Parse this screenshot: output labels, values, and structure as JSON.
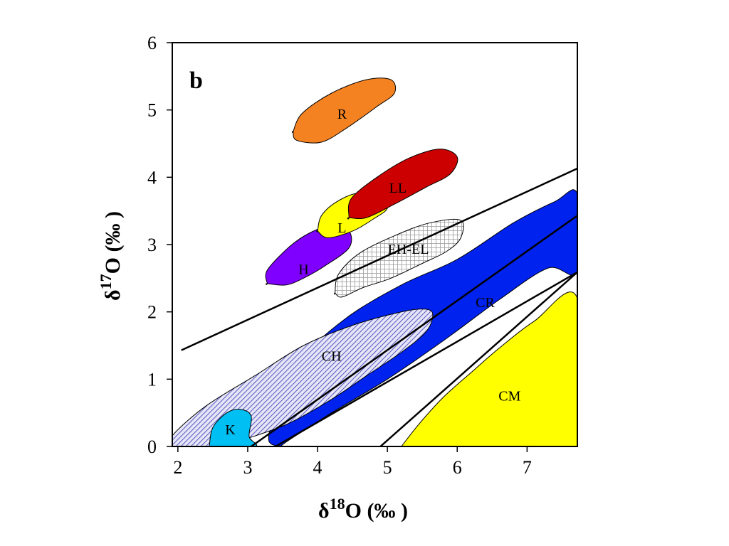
{
  "chart_data": {
    "type": "area",
    "panel_label": "b",
    "xlabel": {
      "prefix": "δ",
      "superscript": "18",
      "suffix": "O (‰ )"
    },
    "ylabel": {
      "prefix": "δ",
      "superscript": "17",
      "suffix": "O (‰ )"
    },
    "xlim": [
      1.92,
      7.72
    ],
    "ylim": [
      0,
      6
    ],
    "x_ticks": [
      2,
      3,
      4,
      5,
      6,
      7
    ],
    "y_ticks": [
      0,
      1,
      2,
      3,
      4,
      5,
      6
    ],
    "grid": false,
    "colors": {
      "R": "#f58220",
      "LL": "#cc0000",
      "L": "#ffff00",
      "H": "#8000ff",
      "EH-EL": "#ffffff",
      "CR": "#0022ee",
      "CH": "#c8c8ee",
      "K": "#00bff3",
      "CM": "#ffff00"
    },
    "lines": [
      {
        "x": [
          2.05,
          7.72
        ],
        "y": [
          1.43,
          4.13
        ]
      },
      {
        "x": [
          3.05,
          7.72
        ],
        "y": [
          0.0,
          3.43
        ]
      },
      {
        "x": [
          3.4,
          7.72
        ],
        "y": [
          0.0,
          2.59
        ]
      },
      {
        "x": [
          4.9,
          7.72
        ],
        "y": [
          0.0,
          2.59
        ]
      }
    ],
    "regions": [
      {
        "label": "CM",
        "label_at": [
          6.75,
          0.73
        ],
        "outline": [
          [
            5.2,
            0
          ],
          [
            5.45,
            0.33
          ],
          [
            5.8,
            0.73
          ],
          [
            6.2,
            1.1
          ],
          [
            6.6,
            1.46
          ],
          [
            7.1,
            1.86
          ],
          [
            7.72,
            2.2
          ],
          [
            7.72,
            0
          ],
          [
            5.2,
            0
          ]
        ]
      },
      {
        "label": "CR",
        "label_at": [
          6.4,
          2.12
        ],
        "outline": [
          [
            3.47,
            0
          ],
          [
            3.6,
            0.1
          ],
          [
            4.2,
            0.5
          ],
          [
            5.0,
            1.0
          ],
          [
            5.8,
            1.57
          ],
          [
            6.6,
            2.18
          ],
          [
            7.3,
            2.65
          ],
          [
            7.72,
            2.6
          ],
          [
            7.72,
            3.75
          ],
          [
            7.4,
            3.64
          ],
          [
            6.8,
            3.32
          ],
          [
            6.0,
            2.78
          ],
          [
            5.2,
            2.4
          ],
          [
            4.4,
            1.9
          ],
          [
            3.72,
            1.25
          ],
          [
            3.42,
            0.6
          ],
          [
            3.3,
            0.1
          ],
          [
            3.47,
            0
          ]
        ]
      },
      {
        "label": "CH",
        "label_at": [
          4.2,
          1.32
        ],
        "outline": [
          [
            1.92,
            0
          ],
          [
            1.92,
            0.16
          ],
          [
            2.4,
            0.6
          ],
          [
            3.1,
            1.05
          ],
          [
            3.8,
            1.5
          ],
          [
            4.5,
            1.8
          ],
          [
            5.2,
            2.0
          ],
          [
            5.55,
            2.04
          ],
          [
            5.65,
            1.95
          ],
          [
            5.55,
            1.7
          ],
          [
            5.2,
            1.4
          ],
          [
            4.7,
            1.05
          ],
          [
            4.2,
            0.7
          ],
          [
            3.6,
            0.35
          ],
          [
            3.0,
            0.12
          ],
          [
            2.6,
            0
          ],
          [
            1.92,
            0
          ]
        ]
      },
      {
        "label": "K",
        "label_at": [
          2.75,
          0.23
        ],
        "outline": [
          [
            2.45,
            0
          ],
          [
            2.5,
            0.28
          ],
          [
            2.7,
            0.5
          ],
          [
            2.9,
            0.55
          ],
          [
            3.05,
            0.45
          ],
          [
            3.02,
            0.15
          ],
          [
            3.1,
            0
          ],
          [
            2.45,
            0
          ]
        ]
      },
      {
        "label": "EH-EL",
        "label_at": [
          5.3,
          2.91
        ],
        "outline": [
          [
            4.25,
            2.28
          ],
          [
            4.3,
            2.56
          ],
          [
            4.6,
            2.87
          ],
          [
            5.1,
            3.13
          ],
          [
            5.6,
            3.32
          ],
          [
            6.05,
            3.36
          ],
          [
            6.05,
            3.1
          ],
          [
            5.85,
            2.9
          ],
          [
            5.5,
            2.72
          ],
          [
            5.05,
            2.5
          ],
          [
            4.65,
            2.36
          ],
          [
            4.35,
            2.22
          ],
          [
            4.25,
            2.28
          ]
        ]
      },
      {
        "label": "H",
        "label_at": [
          3.8,
          2.61
        ],
        "outline": [
          [
            3.28,
            2.42
          ],
          [
            3.28,
            2.62
          ],
          [
            3.6,
            2.97
          ],
          [
            3.9,
            3.18
          ],
          [
            4.2,
            3.28
          ],
          [
            4.45,
            3.2
          ],
          [
            4.45,
            2.95
          ],
          [
            4.1,
            2.68
          ],
          [
            3.8,
            2.5
          ],
          [
            3.55,
            2.4
          ],
          [
            3.28,
            2.42
          ]
        ]
      },
      {
        "label": "L",
        "label_at": [
          4.35,
          3.23
        ],
        "outline": [
          [
            4.0,
            3.2
          ],
          [
            4.05,
            3.42
          ],
          [
            4.25,
            3.62
          ],
          [
            4.55,
            3.76
          ],
          [
            4.8,
            3.72
          ],
          [
            5.0,
            3.55
          ],
          [
            4.8,
            3.38
          ],
          [
            4.5,
            3.2
          ],
          [
            4.15,
            3.1
          ],
          [
            4.0,
            3.2
          ]
        ]
      },
      {
        "label": "LL",
        "label_at": [
          5.15,
          3.82
        ],
        "outline": [
          [
            4.45,
            3.4
          ],
          [
            4.48,
            3.68
          ],
          [
            4.85,
            4.0
          ],
          [
            5.3,
            4.28
          ],
          [
            5.75,
            4.42
          ],
          [
            6.0,
            4.3
          ],
          [
            5.9,
            4.05
          ],
          [
            5.55,
            3.85
          ],
          [
            5.1,
            3.6
          ],
          [
            4.7,
            3.4
          ],
          [
            4.45,
            3.4
          ]
        ]
      },
      {
        "label": "R",
        "label_at": [
          4.35,
          4.92
        ],
        "outline": [
          [
            3.65,
            4.68
          ],
          [
            3.78,
            4.95
          ],
          [
            4.2,
            5.25
          ],
          [
            4.7,
            5.45
          ],
          [
            5.05,
            5.45
          ],
          [
            5.1,
            5.25
          ],
          [
            4.85,
            5.05
          ],
          [
            4.4,
            4.72
          ],
          [
            4.05,
            4.52
          ],
          [
            3.7,
            4.55
          ],
          [
            3.65,
            4.68
          ]
        ]
      }
    ]
  }
}
